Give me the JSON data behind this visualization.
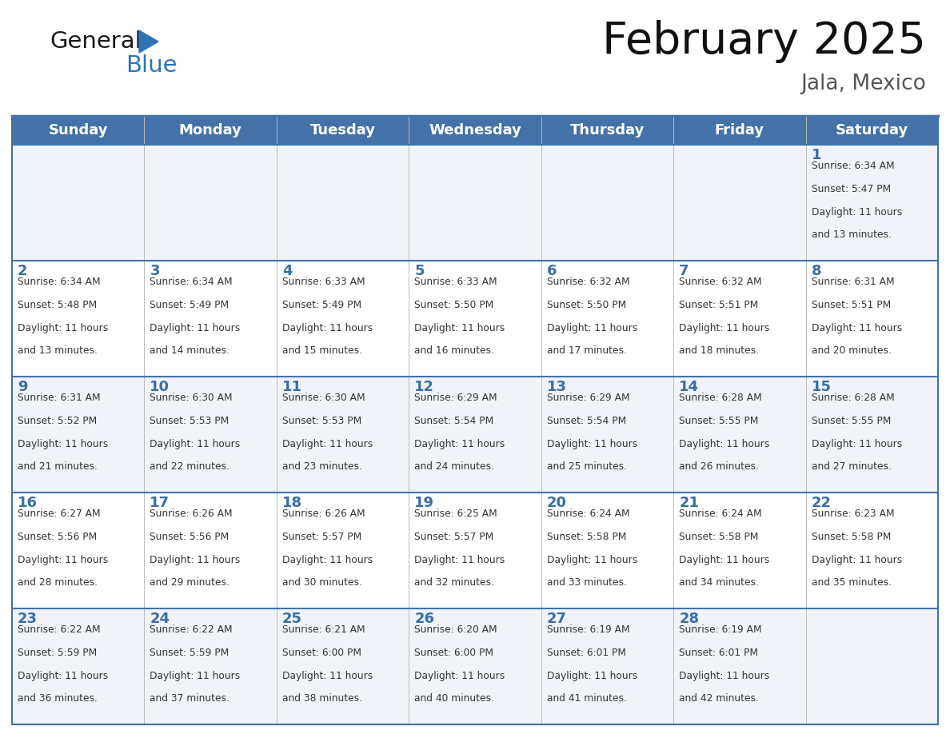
{
  "title": "February 2025",
  "subtitle": "Jala, Mexico",
  "days_of_week": [
    "Sunday",
    "Monday",
    "Tuesday",
    "Wednesday",
    "Thursday",
    "Friday",
    "Saturday"
  ],
  "header_bg": "#4472A8",
  "header_text": "#FFFFFF",
  "row_bg_light": "#F0F4F8",
  "row_bg_white": "#FFFFFF",
  "day_number_color": "#3A6EA5",
  "cell_text_color": "#333333",
  "border_color": "#4472A8",
  "sep_line_color": "#4472A8",
  "calendar_data": [
    [
      null,
      null,
      null,
      null,
      null,
      null,
      {
        "day": 1,
        "sunrise": "6:34 AM",
        "sunset": "5:47 PM",
        "daylight": "11 hours and 13 minutes."
      }
    ],
    [
      {
        "day": 2,
        "sunrise": "6:34 AM",
        "sunset": "5:48 PM",
        "daylight": "11 hours and 13 minutes."
      },
      {
        "day": 3,
        "sunrise": "6:34 AM",
        "sunset": "5:49 PM",
        "daylight": "11 hours and 14 minutes."
      },
      {
        "day": 4,
        "sunrise": "6:33 AM",
        "sunset": "5:49 PM",
        "daylight": "11 hours and 15 minutes."
      },
      {
        "day": 5,
        "sunrise": "6:33 AM",
        "sunset": "5:50 PM",
        "daylight": "11 hours and 16 minutes."
      },
      {
        "day": 6,
        "sunrise": "6:32 AM",
        "sunset": "5:50 PM",
        "daylight": "11 hours and 17 minutes."
      },
      {
        "day": 7,
        "sunrise": "6:32 AM",
        "sunset": "5:51 PM",
        "daylight": "11 hours and 18 minutes."
      },
      {
        "day": 8,
        "sunrise": "6:31 AM",
        "sunset": "5:51 PM",
        "daylight": "11 hours and 20 minutes."
      }
    ],
    [
      {
        "day": 9,
        "sunrise": "6:31 AM",
        "sunset": "5:52 PM",
        "daylight": "11 hours and 21 minutes."
      },
      {
        "day": 10,
        "sunrise": "6:30 AM",
        "sunset": "5:53 PM",
        "daylight": "11 hours and 22 minutes."
      },
      {
        "day": 11,
        "sunrise": "6:30 AM",
        "sunset": "5:53 PM",
        "daylight": "11 hours and 23 minutes."
      },
      {
        "day": 12,
        "sunrise": "6:29 AM",
        "sunset": "5:54 PM",
        "daylight": "11 hours and 24 minutes."
      },
      {
        "day": 13,
        "sunrise": "6:29 AM",
        "sunset": "5:54 PM",
        "daylight": "11 hours and 25 minutes."
      },
      {
        "day": 14,
        "sunrise": "6:28 AM",
        "sunset": "5:55 PM",
        "daylight": "11 hours and 26 minutes."
      },
      {
        "day": 15,
        "sunrise": "6:28 AM",
        "sunset": "5:55 PM",
        "daylight": "11 hours and 27 minutes."
      }
    ],
    [
      {
        "day": 16,
        "sunrise": "6:27 AM",
        "sunset": "5:56 PM",
        "daylight": "11 hours and 28 minutes."
      },
      {
        "day": 17,
        "sunrise": "6:26 AM",
        "sunset": "5:56 PM",
        "daylight": "11 hours and 29 minutes."
      },
      {
        "day": 18,
        "sunrise": "6:26 AM",
        "sunset": "5:57 PM",
        "daylight": "11 hours and 30 minutes."
      },
      {
        "day": 19,
        "sunrise": "6:25 AM",
        "sunset": "5:57 PM",
        "daylight": "11 hours and 32 minutes."
      },
      {
        "day": 20,
        "sunrise": "6:24 AM",
        "sunset": "5:58 PM",
        "daylight": "11 hours and 33 minutes."
      },
      {
        "day": 21,
        "sunrise": "6:24 AM",
        "sunset": "5:58 PM",
        "daylight": "11 hours and 34 minutes."
      },
      {
        "day": 22,
        "sunrise": "6:23 AM",
        "sunset": "5:58 PM",
        "daylight": "11 hours and 35 minutes."
      }
    ],
    [
      {
        "day": 23,
        "sunrise": "6:22 AM",
        "sunset": "5:59 PM",
        "daylight": "11 hours and 36 minutes."
      },
      {
        "day": 24,
        "sunrise": "6:22 AM",
        "sunset": "5:59 PM",
        "daylight": "11 hours and 37 minutes."
      },
      {
        "day": 25,
        "sunrise": "6:21 AM",
        "sunset": "6:00 PM",
        "daylight": "11 hours and 38 minutes."
      },
      {
        "day": 26,
        "sunrise": "6:20 AM",
        "sunset": "6:00 PM",
        "daylight": "11 hours and 40 minutes."
      },
      {
        "day": 27,
        "sunrise": "6:19 AM",
        "sunset": "6:01 PM",
        "daylight": "11 hours and 41 minutes."
      },
      {
        "day": 28,
        "sunrise": "6:19 AM",
        "sunset": "6:01 PM",
        "daylight": "11 hours and 42 minutes."
      },
      null
    ]
  ],
  "logo_text_general": "General",
  "logo_text_blue": "Blue",
  "logo_triangle_color": "#2E75B6",
  "logo_general_color": "#1a1a1a"
}
